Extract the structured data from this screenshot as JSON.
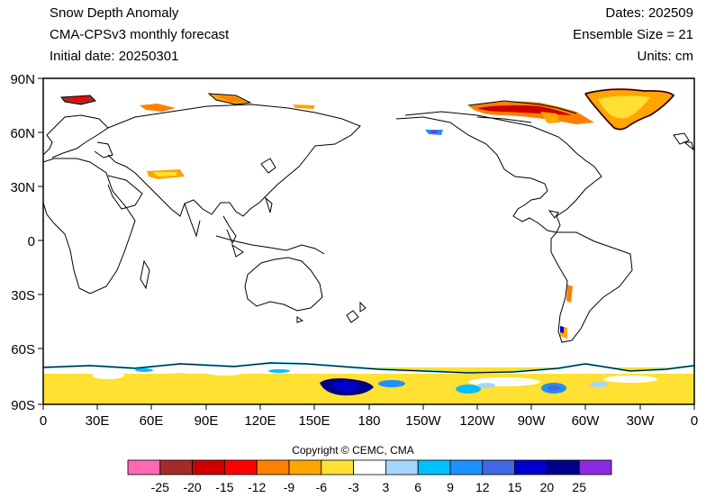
{
  "header": {
    "title": "Snow Depth Anomaly",
    "model": "CMA-CPSv3 monthly forecast",
    "initial_date": "Initial date: 20250301",
    "dates": "Dates: 202509",
    "ensemble": "Ensemble Size = 21",
    "units": "Units: cm"
  },
  "map": {
    "projection": "cylindrical equidistant",
    "lon_range": [
      0,
      360
    ],
    "lat_range": [
      -90,
      90
    ],
    "lat_ticks": [
      "90N",
      "60N",
      "30N",
      "0",
      "30S",
      "60S",
      "90S"
    ],
    "lon_ticks": [
      "0",
      "30E",
      "60E",
      "90E",
      "120E",
      "150E",
      "180",
      "150W",
      "120W",
      "90W",
      "60W",
      "30W",
      "0"
    ]
  },
  "colorbar": {
    "colors": [
      "#ff69b4",
      "#a52a2a",
      "#cd0000",
      "#ff0000",
      "#ff7f00",
      "#ffa500",
      "#ffe033",
      "#ffffff",
      "#a6d5ff",
      "#00bfff",
      "#1e90ff",
      "#4169e1",
      "#0000cd",
      "#00008b",
      "#8a2be2"
    ],
    "labels": [
      "-25",
      "-20",
      "-15",
      "-12",
      "-9",
      "-6",
      "-3",
      "3",
      "6",
      "9",
      "12",
      "15",
      "20",
      "25"
    ]
  },
  "copyright": "Copyright © CEMC, CMA"
}
